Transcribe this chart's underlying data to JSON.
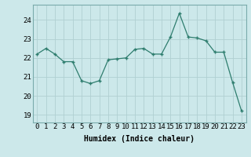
{
  "x": [
    0,
    1,
    2,
    3,
    4,
    5,
    6,
    7,
    8,
    9,
    10,
    11,
    12,
    13,
    14,
    15,
    16,
    17,
    18,
    19,
    20,
    21,
    22,
    23
  ],
  "y": [
    22.2,
    22.5,
    22.2,
    21.8,
    21.8,
    20.8,
    20.65,
    20.8,
    21.9,
    21.95,
    22.0,
    22.45,
    22.5,
    22.2,
    22.2,
    23.1,
    24.35,
    23.1,
    23.05,
    22.9,
    22.3,
    22.3,
    20.7,
    19.2
  ],
  "line_color": "#2e7d6e",
  "marker": "+",
  "marker_size": 3,
  "marker_lw": 1.0,
  "bg_color": "#cce8ea",
  "grid_color": "#b0d0d2",
  "xlabel": "Humidex (Indice chaleur)",
  "ylim": [
    18.6,
    24.8
  ],
  "xlim": [
    -0.5,
    23.5
  ],
  "yticks": [
    19,
    20,
    21,
    22,
    23,
    24
  ],
  "xticks": [
    0,
    1,
    2,
    3,
    4,
    5,
    6,
    7,
    8,
    9,
    10,
    11,
    12,
    13,
    14,
    15,
    16,
    17,
    18,
    19,
    20,
    21,
    22,
    23
  ],
  "label_fontsize": 7,
  "tick_fontsize": 6.5
}
